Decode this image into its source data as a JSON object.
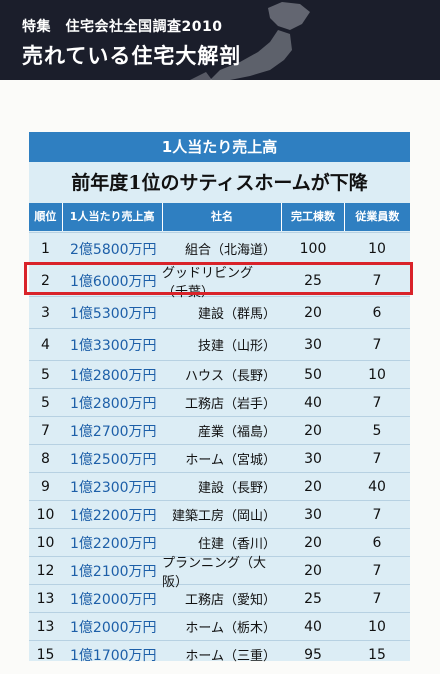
{
  "header": {
    "kicker": "特集　住宅会社全国調査2010",
    "headline": "売れている住宅大解剖"
  },
  "table": {
    "band_title": "1人当たり売上高",
    "subtitle": "前年度1位のサティスホームが下降",
    "columns": [
      "順位",
      "1人当たり売上高",
      "社名",
      "完工棟数",
      "従業員数"
    ],
    "rows": [
      {
        "rank": "1",
        "sales": "2億5800万円",
        "company": "組合（北海道）",
        "units": "100",
        "staff": "10"
      },
      {
        "rank": "2",
        "sales": "1億6000万円",
        "company": "グッドリビング（千葉）",
        "units": "25",
        "staff": "7"
      },
      {
        "rank": "3",
        "sales": "1億5300万円",
        "company": "建設（群馬）",
        "units": "20",
        "staff": "6"
      },
      {
        "rank": "4",
        "sales": "1億3300万円",
        "company": "技建（山形）",
        "units": "30",
        "staff": "7"
      },
      {
        "rank": "5",
        "sales": "1億2800万円",
        "company": "ハウス（長野）",
        "units": "50",
        "staff": "10"
      },
      {
        "rank": "5",
        "sales": "1億2800万円",
        "company": "工務店（岩手）",
        "units": "40",
        "staff": "7"
      },
      {
        "rank": "7",
        "sales": "1億2700万円",
        "company": "産業（福島）",
        "units": "20",
        "staff": "5"
      },
      {
        "rank": "8",
        "sales": "1億2500万円",
        "company": "ホーム（宮城）",
        "units": "30",
        "staff": "7"
      },
      {
        "rank": "9",
        "sales": "1億2300万円",
        "company": "建設（長野）",
        "units": "20",
        "staff": "40"
      },
      {
        "rank": "10",
        "sales": "1億2200万円",
        "company": "建築工房（岡山）",
        "units": "30",
        "staff": "7"
      },
      {
        "rank": "10",
        "sales": "1億2200万円",
        "company": "住建（香川）",
        "units": "20",
        "staff": "6"
      },
      {
        "rank": "12",
        "sales": "1億2100万円",
        "company": "プランニング（大阪）",
        "units": "20",
        "staff": "7"
      },
      {
        "rank": "13",
        "sales": "1億2000万円",
        "company": "工務店（愛知）",
        "units": "25",
        "staff": "7"
      },
      {
        "rank": "13",
        "sales": "1億2000万円",
        "company": "ホーム（栃木）",
        "units": "40",
        "staff": "10"
      },
      {
        "rank": "15",
        "sales": "1億1700万円",
        "company": "ホーム（三重）",
        "units": "95",
        "staff": "15"
      }
    ]
  },
  "colors": {
    "accent_blue": "#2f7fc1",
    "panel_bg": "#dcedf5",
    "highlight_red": "#d9232a",
    "header_dark": "#1b1e2b"
  }
}
